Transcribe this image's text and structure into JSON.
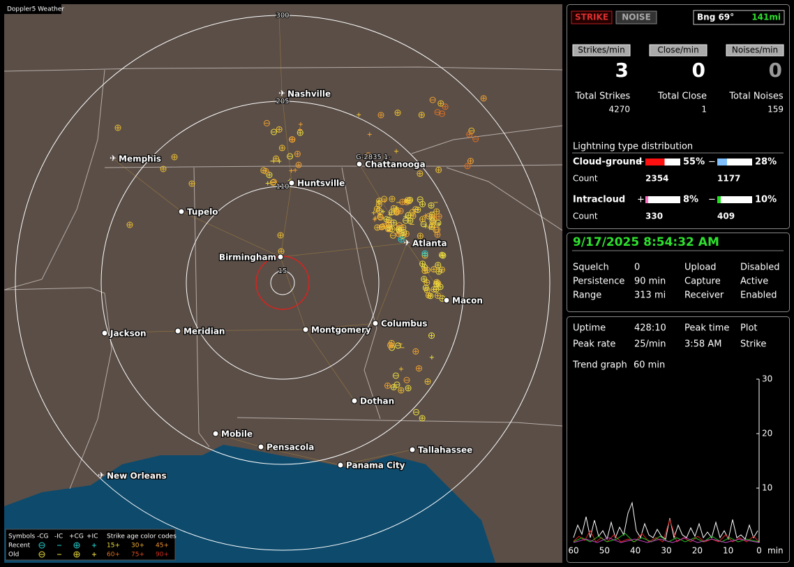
{
  "app_title": "Doppler5 Weather",
  "map": {
    "ring_labels": [
      "15",
      "110",
      "205",
      "300"
    ],
    "cities": [
      "Nashville",
      "Memphis",
      "Chattanooga",
      "Huntsville",
      "Tupelo",
      "Birmingham",
      "Atlanta",
      "Macon",
      "Columbus",
      "Montgomery",
      "Meridian",
      "Jackson",
      "Dothan",
      "Mobile",
      "Pensacola",
      "Tallahassee",
      "Panama City",
      "New Orleans"
    ],
    "station_label": "G-2835  1-",
    "legend": {
      "symbols_title": "Symbols",
      "columns": [
        "-CG",
        "-IC",
        "+CG",
        "+IC"
      ],
      "rows": [
        "Recent",
        "Old"
      ],
      "age_title": "Strike age color codes",
      "recent_ages": [
        "15+",
        "30+",
        "45+"
      ],
      "old_ages": [
        "60+",
        "75+",
        "90+"
      ]
    }
  },
  "status": {
    "strike_button": "STRIKE",
    "noise_button": "NOISE",
    "bearing": "Bng 69°",
    "distance": "141mi",
    "rate_labels": [
      "Strikes/min",
      "Close/min",
      "Noises/min"
    ],
    "rates": [
      3,
      0,
      0
    ],
    "total_labels": [
      "Total Strikes",
      "Total Close",
      "Total Noises"
    ],
    "totals": [
      4270,
      1,
      159
    ],
    "distribution_title": "Lightning type distribution",
    "cloud_ground": {
      "label": "Cloud-ground",
      "pos_sign": "+",
      "neg_sign": "−",
      "pos": {
        "value": 55,
        "label": "55%"
      },
      "neg": {
        "value": 28,
        "label": "28%"
      },
      "count_label": "Count",
      "pos_count": 2354,
      "neg_count": 1177
    },
    "intracloud": {
      "label": "Intracloud",
      "pos_sign": "+",
      "neg_sign": "−",
      "pos": {
        "value": 8,
        "label": "8%"
      },
      "neg": {
        "value": 10,
        "label": "10%"
      },
      "count_label": "Count",
      "pos_count": 330,
      "neg_count": 409
    }
  },
  "settings": {
    "datetime": "9/17/2025 8:54:32 AM",
    "rows": [
      [
        "Squelch",
        "0",
        "Upload",
        "Disabled"
      ],
      [
        "Persistence",
        "90 min",
        "Capture",
        "Active"
      ],
      [
        "Range",
        "313 mi",
        "Receiver",
        "Enabled"
      ]
    ]
  },
  "stats": {
    "rows": [
      [
        "Uptime",
        "428:10",
        "Peak time",
        "Plot"
      ],
      [
        "Peak rate",
        "25/min",
        "3:58 AM",
        "Strike"
      ]
    ],
    "trend_label": "Trend graph",
    "trend_value": "60 min"
  },
  "trend": {
    "ylim": [
      0,
      30
    ],
    "yticks": [
      10,
      20,
      30
    ],
    "xlim": [
      60,
      0
    ],
    "xticks": [
      60,
      50,
      40,
      30,
      20,
      10,
      0
    ],
    "x_unit": "min"
  }
}
